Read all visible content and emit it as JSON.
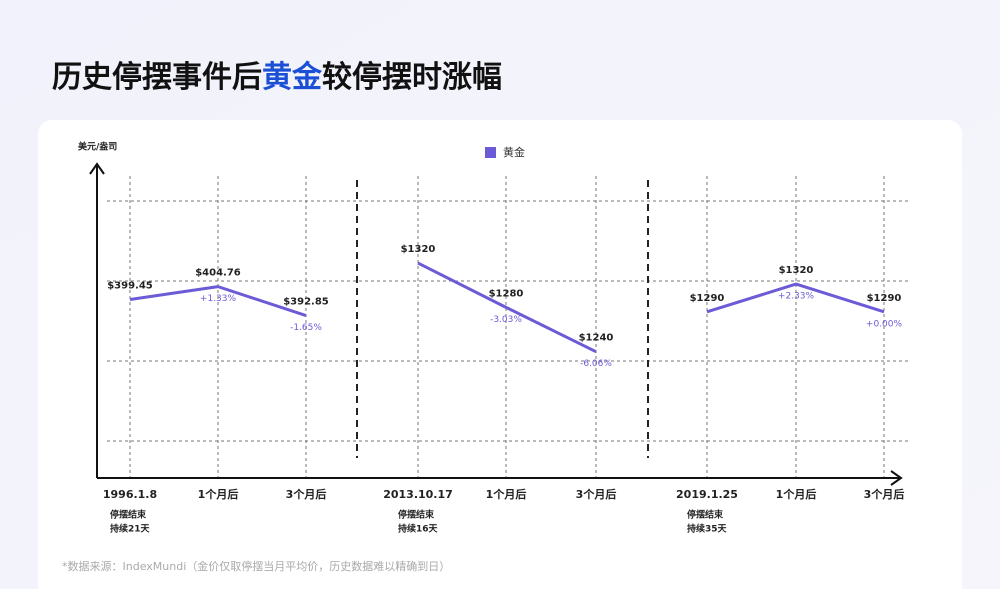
{
  "header": {
    "title": [
      "历史停摆事件后",
      "黄金",
      "较停摆时涨幅"
    ]
  },
  "chart_data": {
    "type": "line",
    "y_label": "美元/盎司",
    "grid": true,
    "series": [
      {
        "name": "黄金",
        "color": "#6b5bd6"
      }
    ],
    "panels": [
      {
        "categories": [
          "1996.1.8",
          "1个月后",
          "3个月后"
        ],
        "values": [
          399.45,
          404.76,
          392.85
        ],
        "value_labels": [
          "$399.45",
          "$404.76",
          "$392.85"
        ],
        "changes": [
          null,
          "+1.33%",
          "-1.65%"
        ],
        "note": [
          "停摆结束",
          "持续21天"
        ],
        "ylim": [
          326,
          440
        ]
      },
      {
        "categories": [
          "2013.10.17",
          "1个月后",
          "3个月后"
        ],
        "values": [
          1320,
          1280,
          1240
        ],
        "value_labels": [
          "$1320",
          "$1280",
          "$1240"
        ],
        "changes": [
          null,
          "-3.03%",
          "-6.06%"
        ],
        "note": [
          "停摆结束",
          "持续16天"
        ],
        "ylim": [
          1126,
          1376
        ]
      },
      {
        "categories": [
          "2019.1.25",
          "1个月后",
          "3个月后"
        ],
        "values": [
          1290,
          1320,
          1290
        ],
        "value_labels": [
          "$1290",
          "$1320",
          "$1290"
        ],
        "changes": [
          null,
          "+2.33%",
          "+0.00%"
        ],
        "note": [
          "停摆结束",
          "持续35天"
        ],
        "ylim": [
          1110,
          1410
        ]
      }
    ]
  },
  "footnote": "*数据来源：IndexMundi（金价仅取停摆当月平均价，历史数据难以精确到日）"
}
